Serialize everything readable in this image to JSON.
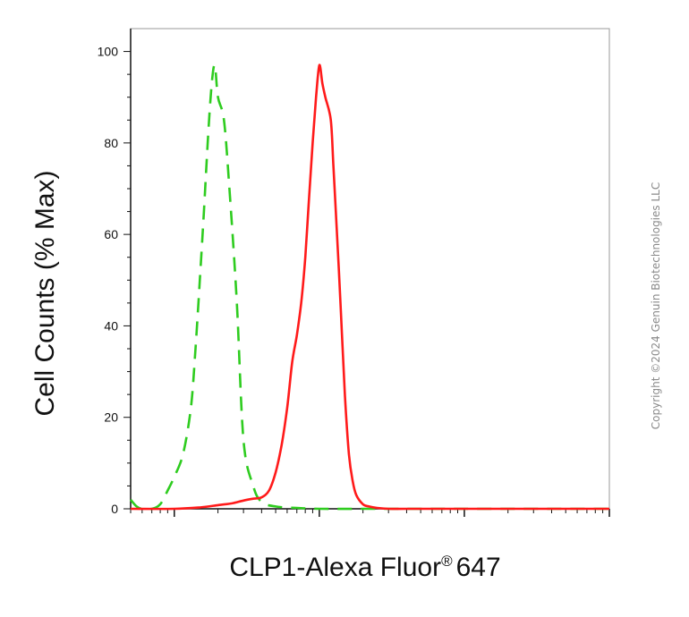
{
  "chart_data": {
    "type": "line",
    "xlabel": "CLP1-Alexa Fluor",
    "xlabel_mark": "®",
    "xlabel_suffix": "647",
    "ylabel": "Cell Counts (% Max)",
    "x_scale": "log",
    "xlim": [
      0.5,
      1000
    ],
    "ylim": [
      0,
      105
    ],
    "yticks": [
      0,
      20,
      40,
      60,
      80,
      100
    ],
    "grid": false,
    "legend": "none",
    "series": [
      {
        "color": "#2ecc1f",
        "style": "dashed",
        "x": [
          0.5,
          0.55,
          0.6,
          0.7,
          0.8,
          0.9,
          1.0,
          1.15,
          1.3,
          1.4,
          1.5,
          1.6,
          1.7,
          1.8,
          1.9,
          2.0,
          2.2,
          2.4,
          2.7,
          3.0,
          3.5,
          4.0,
          5.0,
          7.0,
          10.0,
          20.0,
          50.0,
          100.0,
          1000.0
        ],
        "y": [
          2,
          0.5,
          0,
          0,
          1,
          4,
          7,
          12,
          22,
          35,
          50,
          65,
          80,
          92,
          97,
          90,
          85,
          70,
          45,
          15,
          5,
          1.5,
          0.5,
          0.2,
          0,
          0,
          0,
          0,
          0
        ]
      },
      {
        "color": "#ff1a1a",
        "style": "solid",
        "x": [
          0.5,
          1.0,
          1.5,
          2.0,
          2.5,
          3.0,
          3.5,
          4.0,
          4.5,
          5.0,
          5.5,
          6.0,
          6.5,
          7.0,
          7.5,
          8.0,
          8.5,
          9.0,
          9.5,
          10.0,
          10.5,
          11.0,
          12.0,
          12.5,
          13.0,
          14.0,
          15.0,
          16.0,
          17.0,
          18.0,
          20.0,
          22.0,
          25.0,
          30.0,
          40.0,
          60.0,
          100.0,
          200.0,
          500.0,
          1000.0
        ],
        "y": [
          0,
          0,
          0.3,
          0.8,
          1.2,
          1.8,
          2.2,
          2.5,
          4,
          8,
          14,
          22,
          32,
          38,
          45,
          55,
          68,
          80,
          90,
          97,
          93,
          90,
          85,
          75,
          65,
          45,
          25,
          12,
          6,
          3,
          1,
          0.5,
          0.2,
          0,
          0,
          0,
          0,
          0,
          0,
          0
        ]
      }
    ]
  },
  "watermark": "Copyright ©2024 Genuin Biotechnologies LLC"
}
